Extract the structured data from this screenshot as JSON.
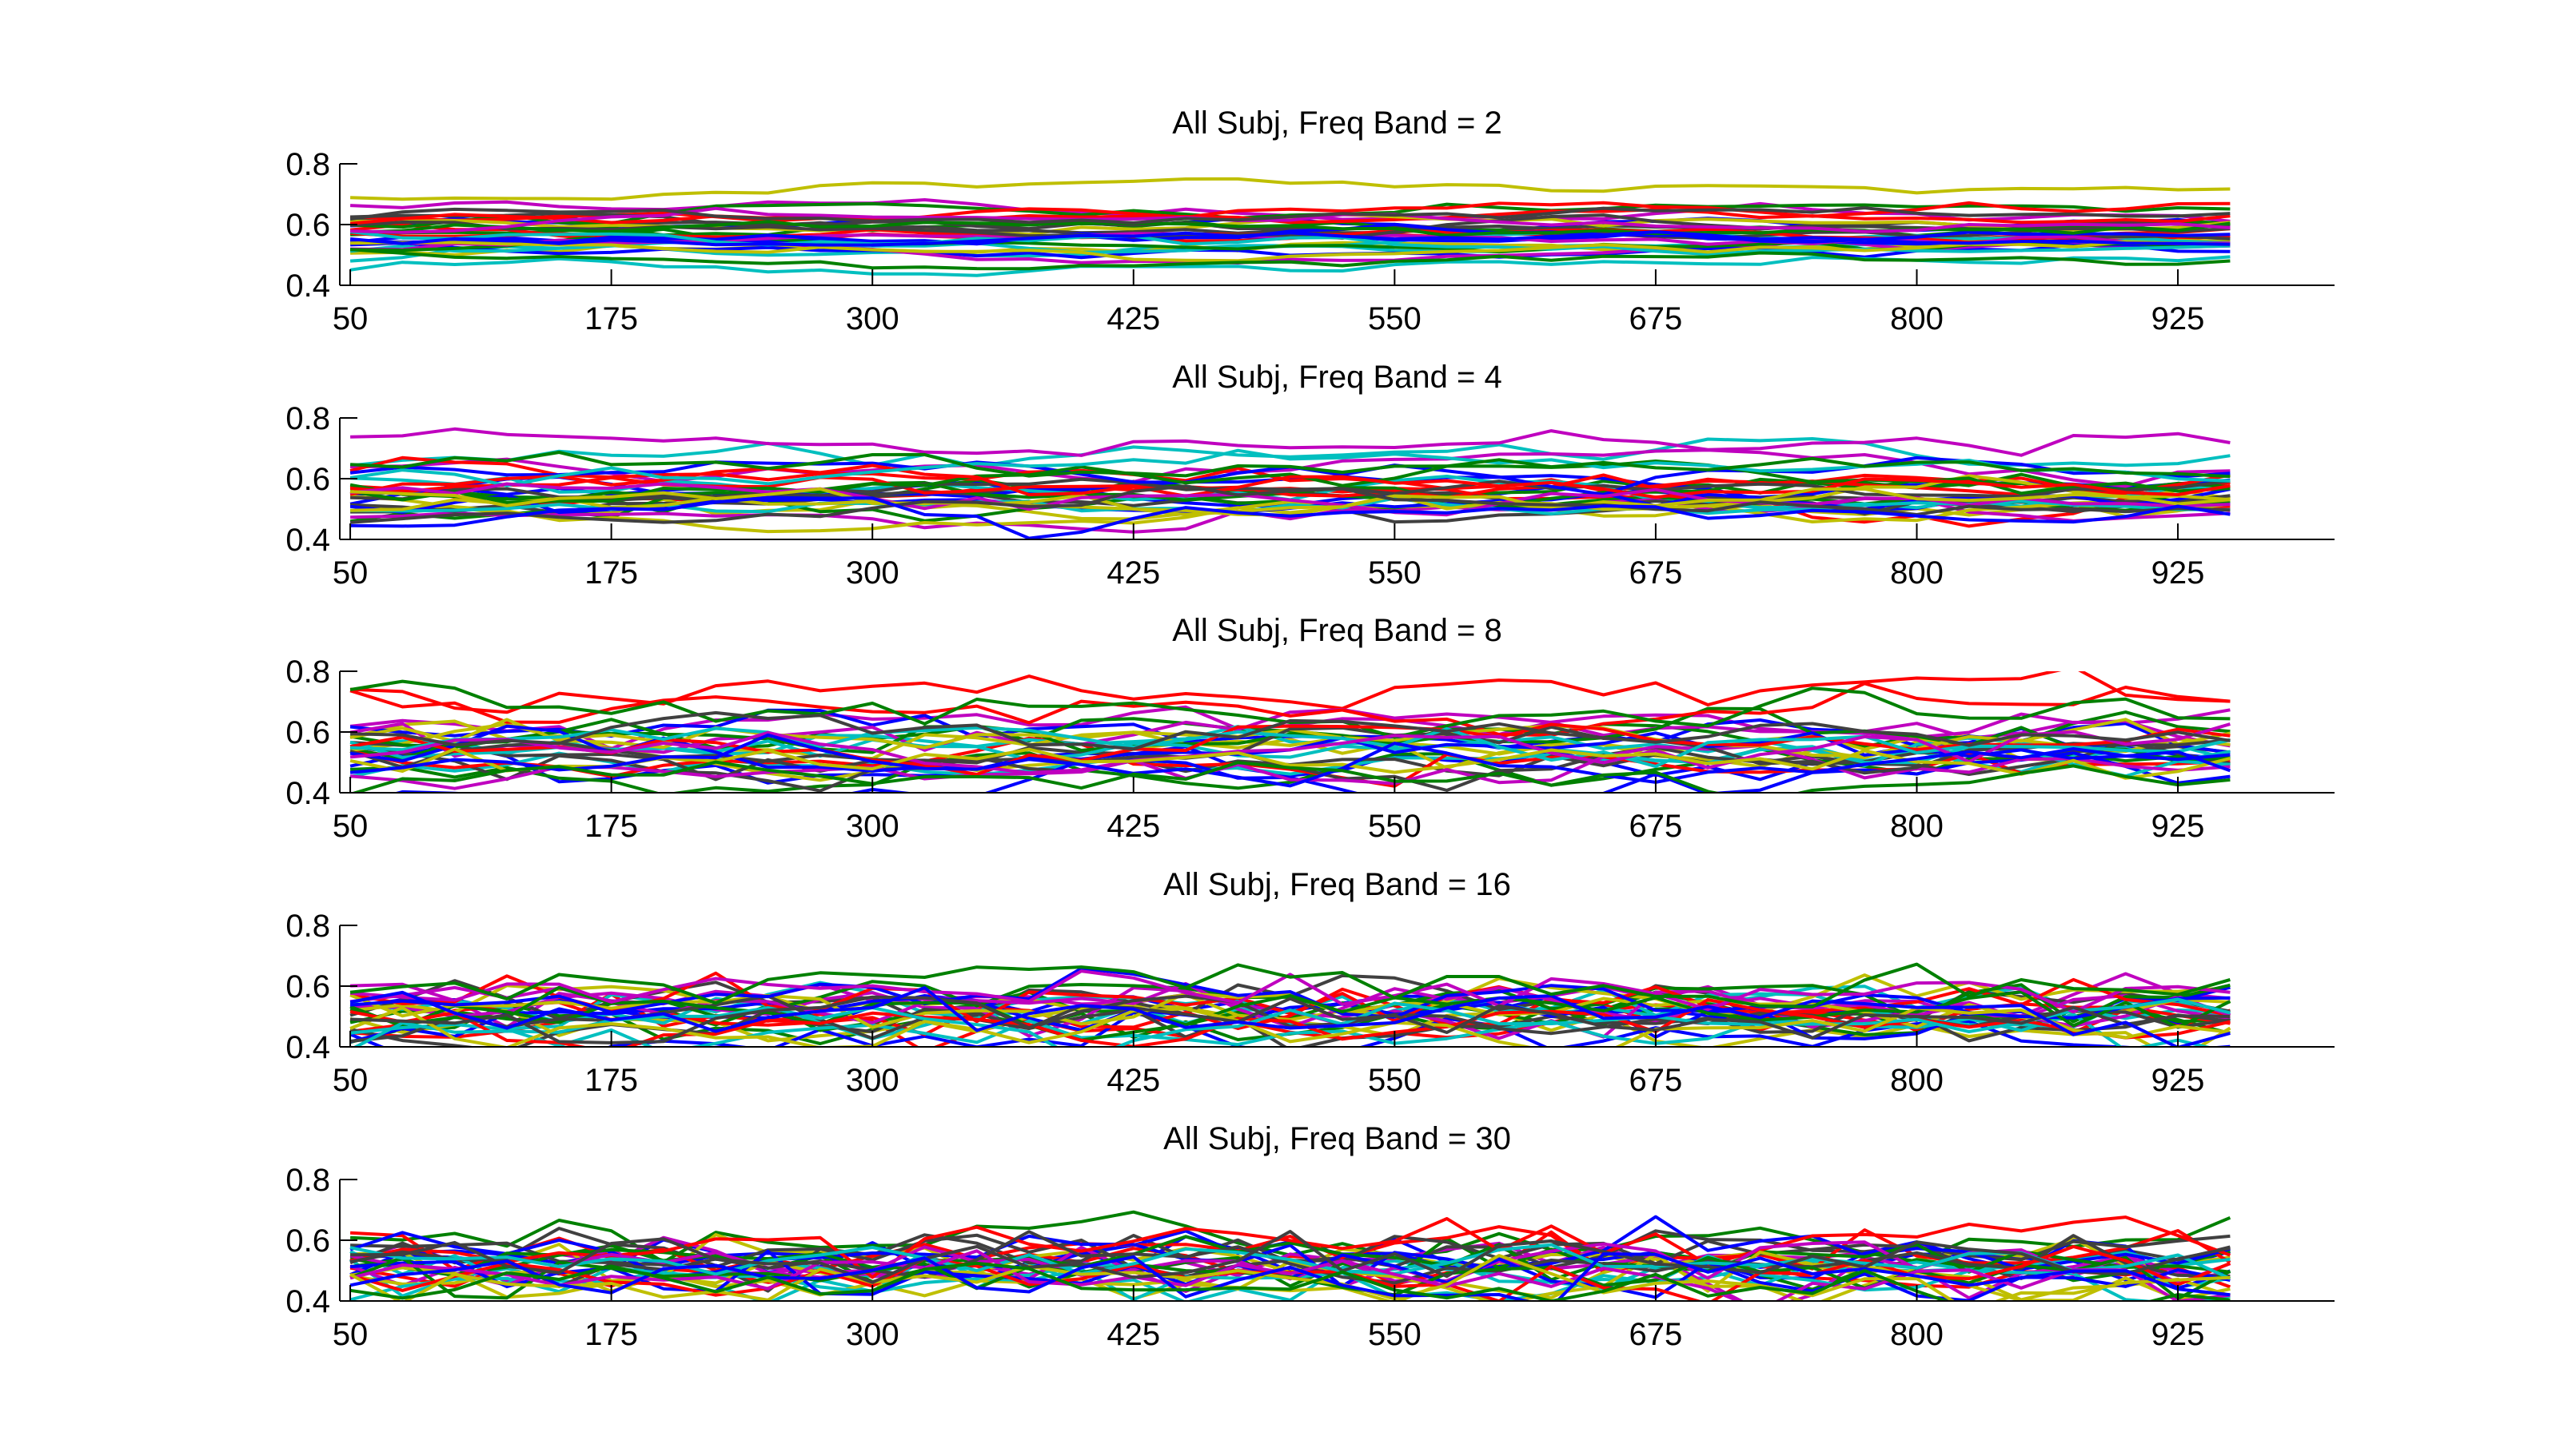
{
  "chart_data": [
    {
      "type": "line",
      "title": "All Subj, Freq Band =  2",
      "xlabel": "",
      "ylabel": "",
      "xlim": [
        45,
        1000
      ],
      "ylim": [
        0.4,
        0.8
      ],
      "xticks": [
        "50",
        "175",
        "300",
        "425",
        "550",
        "675",
        "800",
        "925"
      ],
      "yticks": [
        "0.4",
        "0.6",
        "0.8"
      ],
      "x": [
        50,
        75,
        100,
        125,
        150,
        175,
        200,
        225,
        250,
        275,
        300,
        325,
        350,
        375,
        400,
        425,
        450,
        475,
        500,
        525,
        550,
        575,
        600,
        625,
        650,
        675,
        700,
        725,
        750,
        775,
        800,
        825,
        850,
        875,
        900,
        925,
        950
      ],
      "series_count": 30,
      "approx_center": 0.56,
      "approx_spread": 0.08,
      "smoothness": 0.85
    },
    {
      "type": "line",
      "title": "All Subj, Freq Band =  4",
      "xlabel": "",
      "ylabel": "",
      "xlim": [
        45,
        1000
      ],
      "ylim": [
        0.4,
        0.8
      ],
      "xticks": [
        "50",
        "175",
        "300",
        "425",
        "550",
        "675",
        "800",
        "925"
      ],
      "yticks": [
        "0.4",
        "0.6",
        "0.8"
      ],
      "x": [
        50,
        75,
        100,
        125,
        150,
        175,
        200,
        225,
        250,
        275,
        300,
        325,
        350,
        375,
        400,
        425,
        450,
        475,
        500,
        525,
        550,
        575,
        600,
        625,
        650,
        675,
        700,
        725,
        750,
        775,
        800,
        825,
        850,
        875,
        900,
        925,
        950
      ],
      "series_count": 30,
      "approx_center": 0.56,
      "approx_spread": 0.09,
      "smoothness": 0.75
    },
    {
      "type": "line",
      "title": "All Subj, Freq Band =  8",
      "xlabel": "",
      "ylabel": "",
      "xlim": [
        45,
        1000
      ],
      "ylim": [
        0.4,
        0.8
      ],
      "xticks": [
        "50",
        "175",
        "300",
        "425",
        "550",
        "675",
        "800",
        "925"
      ],
      "yticks": [
        "0.4",
        "0.6",
        "0.8"
      ],
      "x": [
        50,
        75,
        100,
        125,
        150,
        175,
        200,
        225,
        250,
        275,
        300,
        325,
        350,
        375,
        400,
        425,
        450,
        475,
        500,
        525,
        550,
        575,
        600,
        625,
        650,
        675,
        700,
        725,
        750,
        775,
        800,
        825,
        850,
        875,
        900,
        925,
        950
      ],
      "series_count": 30,
      "approx_center": 0.56,
      "approx_spread": 0.09,
      "smoothness": 0.6
    },
    {
      "type": "line",
      "title": "All Subj, Freq Band =  16",
      "xlabel": "",
      "ylabel": "",
      "xlim": [
        45,
        1000
      ],
      "ylim": [
        0.4,
        0.8
      ],
      "xticks": [
        "50",
        "175",
        "300",
        "425",
        "550",
        "675",
        "800",
        "925"
      ],
      "yticks": [
        "0.4",
        "0.6",
        "0.8"
      ],
      "x": [
        50,
        75,
        100,
        125,
        150,
        175,
        200,
        225,
        250,
        275,
        300,
        325,
        350,
        375,
        400,
        425,
        450,
        475,
        500,
        525,
        550,
        575,
        600,
        625,
        650,
        675,
        700,
        725,
        750,
        775,
        800,
        825,
        850,
        875,
        900,
        925,
        950
      ],
      "series_count": 30,
      "approx_center": 0.52,
      "approx_spread": 0.07,
      "smoothness": 0.35
    },
    {
      "type": "line",
      "title": "All Subj, Freq Band =  30",
      "xlabel": "",
      "ylabel": "",
      "xlim": [
        45,
        1000
      ],
      "ylim": [
        0.4,
        0.8
      ],
      "xticks": [
        "50",
        "175",
        "300",
        "425",
        "550",
        "675",
        "800",
        "925"
      ],
      "yticks": [
        "0.4",
        "0.6",
        "0.8"
      ],
      "x": [
        50,
        75,
        100,
        125,
        150,
        175,
        200,
        225,
        250,
        275,
        300,
        325,
        350,
        375,
        400,
        425,
        450,
        475,
        500,
        525,
        550,
        575,
        600,
        625,
        650,
        675,
        700,
        725,
        750,
        775,
        800,
        825,
        850,
        875,
        900,
        925,
        950
      ],
      "series_count": 30,
      "approx_center": 0.52,
      "approx_spread": 0.06,
      "smoothness": 0.2
    }
  ],
  "series_colors": [
    "#0000ff",
    "#008000",
    "#ff0000",
    "#00bfbf",
    "#bf00bf",
    "#bfbf00",
    "#404040"
  ],
  "grid": false,
  "legend": "none"
}
